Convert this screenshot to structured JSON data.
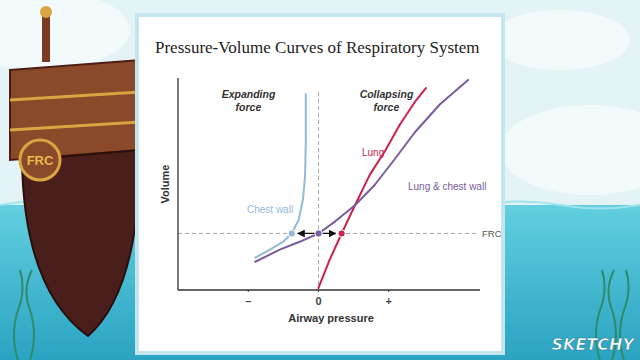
{
  "chart_data": {
    "type": "line",
    "title": "Pressure-Volume Curves of Respiratory System",
    "x_label": "Airway pressure",
    "y_label": "Volume",
    "xlim": [
      -2,
      2.3
    ],
    "ylim": [
      0,
      10.5
    ],
    "xticks": [
      {
        "value": -1,
        "label": "–"
      },
      0,
      {
        "value": 1,
        "label": "+"
      }
    ],
    "tick_labels": "x",
    "annotations": [
      "Expanding force",
      "Collapsing force"
    ],
    "vline": 0,
    "hline": {
      "value": 2.8,
      "label": "FRC"
    },
    "series": [
      {
        "name": "Chest wall",
        "color": "#93b9d6",
        "x": [
          -0.9,
          -0.69,
          -0.5,
          -0.38,
          -0.28,
          -0.22,
          -0.19,
          -0.18,
          -0.18
        ],
        "values": [
          1.6,
          2.0,
          2.4,
          2.8,
          3.5,
          4.5,
          5.7,
          7.4,
          9.7
        ]
      },
      {
        "name": "Lung",
        "color": "#c8234c",
        "x": [
          0,
          0.16,
          0.33,
          0.52,
          0.73,
          0.95,
          1.16,
          1.37,
          1.53
        ],
        "values": [
          0.1,
          1.5,
          2.8,
          4.2,
          5.7,
          6.9,
          8.2,
          9.3,
          10.0
        ]
      },
      {
        "name": "Lung & chest wall",
        "color": "#7a5c9e",
        "x": [
          -0.9,
          -0.55,
          -0.26,
          0,
          0.24,
          0.52,
          0.8,
          1.09,
          1.37,
          1.73,
          2.13
        ],
        "values": [
          1.4,
          2.0,
          2.4,
          2.8,
          3.4,
          4.2,
          5.2,
          6.5,
          7.8,
          9.2,
          10.4
        ]
      }
    ]
  },
  "scene": {
    "boat_label": "FRC",
    "logo": "SKETCHY"
  }
}
